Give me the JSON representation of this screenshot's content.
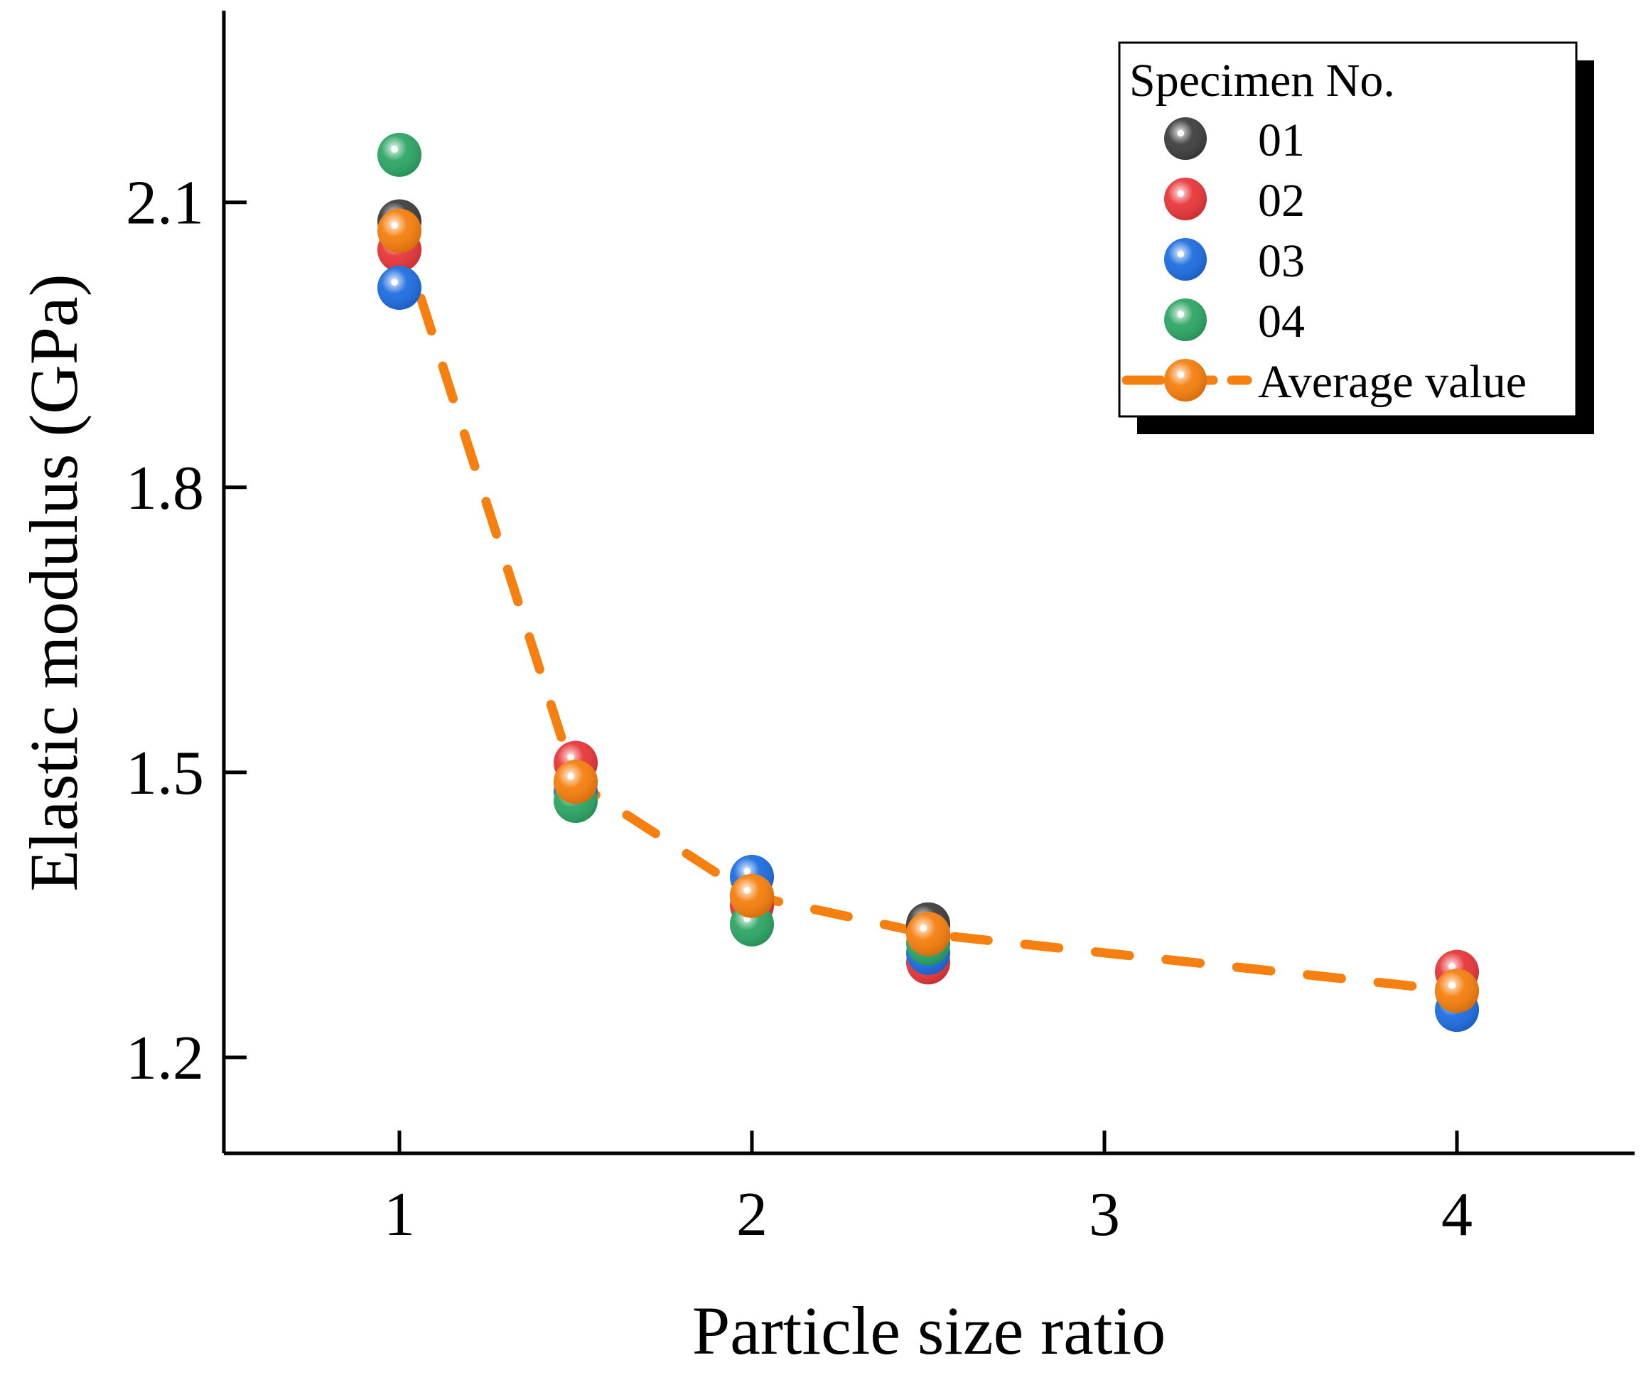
{
  "chart_data": {
    "type": "scatter",
    "title": "",
    "xlabel": "Particle size ratio",
    "ylabel": "Elastic modulus (GPa)",
    "xlim": [
      0.5,
      4.5
    ],
    "ylim": [
      1.1,
      2.3
    ],
    "x_ticks": [
      1,
      2,
      3,
      4
    ],
    "y_ticks": [
      1.2,
      1.5,
      1.8,
      2.1
    ],
    "x_tick_labels": [
      "1",
      "2",
      "3",
      "4"
    ],
    "y_tick_labels": [
      "1.2",
      "1.5",
      "1.8",
      "2.1"
    ],
    "grid": false,
    "legend_title": "Specimen No.",
    "legend_position": "top-right",
    "series": [
      {
        "name": "01",
        "color": "#3f3f3f",
        "x": [
          1,
          1.5,
          2,
          2.5,
          4
        ],
        "y": [
          2.08,
          1.49,
          1.37,
          1.34,
          1.27
        ]
      },
      {
        "name": "02",
        "color": "#e8373a",
        "x": [
          1,
          1.5,
          2,
          2.5,
          4
        ],
        "y": [
          2.05,
          1.51,
          1.36,
          1.3,
          1.29
        ]
      },
      {
        "name": "03",
        "color": "#1f6ee0",
        "x": [
          1,
          1.5,
          2,
          2.5,
          4
        ],
        "y": [
          2.01,
          1.48,
          1.39,
          1.31,
          1.25
        ]
      },
      {
        "name": "04",
        "color": "#2ea665",
        "x": [
          1,
          1.5,
          2,
          2.5,
          4
        ],
        "y": [
          2.15,
          1.47,
          1.34,
          1.32,
          1.27
        ]
      }
    ],
    "average": {
      "name": "Average value",
      "color": "#f57f0f",
      "x": [
        1,
        1.5,
        2,
        2.5,
        4
      ],
      "y": [
        2.07,
        1.49,
        1.37,
        1.33,
        1.27
      ]
    }
  }
}
